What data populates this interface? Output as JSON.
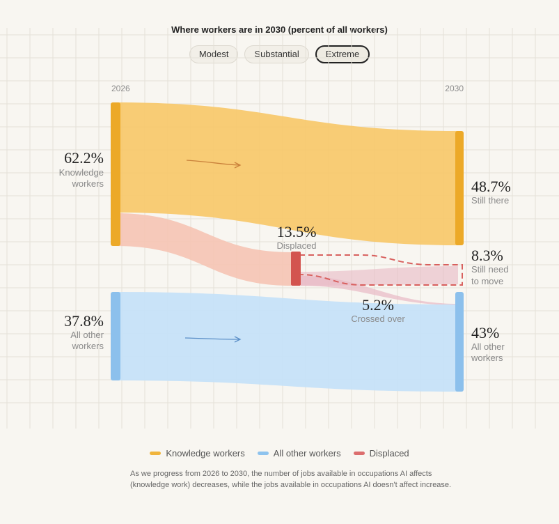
{
  "header": {
    "title": "Where workers are in 2030 (percent of all workers)"
  },
  "scenarios": {
    "options": [
      "Modest",
      "Substantial",
      "Extreme"
    ],
    "selected": "Extreme"
  },
  "chart_data": {
    "type": "sankey",
    "title": "Where workers are in 2030 (percent of all workers)",
    "x_labels": [
      "2026",
      "2030"
    ],
    "nodes": [
      {
        "id": "knowledge_2026",
        "value": "62.2%",
        "label": "Knowledge workers"
      },
      {
        "id": "other_2026",
        "value": "37.8%",
        "label": "All other workers"
      },
      {
        "id": "displaced",
        "value": "13.5%",
        "label": "Displaced"
      },
      {
        "id": "still_there",
        "value": "48.7%",
        "label": "Still there"
      },
      {
        "id": "need_move",
        "value": "8.3%",
        "label": "Still need to move"
      },
      {
        "id": "crossed",
        "value": "5.2%",
        "label": "Crossed over"
      },
      {
        "id": "other_2030",
        "value": "43%",
        "label": "All other workers"
      }
    ],
    "flows": [
      {
        "from": "knowledge_2026",
        "to": "still_there",
        "value": 48.7
      },
      {
        "from": "knowledge_2026",
        "to": "displaced",
        "value": 13.5
      },
      {
        "from": "displaced",
        "to": "need_move",
        "value": 8.3
      },
      {
        "from": "displaced",
        "to": "other_2030",
        "value": 5.2
      },
      {
        "from": "other_2026",
        "to": "other_2030",
        "value": 37.8
      }
    ],
    "legend": [
      "Knowledge workers",
      "All other workers",
      "Displaced"
    ],
    "legend_position": "bottom-center",
    "grid": true
  },
  "labels": {
    "knowledge_2026": {
      "value": "62.2%",
      "line1": "Knowledge",
      "line2": "workers"
    },
    "other_2026": {
      "value": "37.8%",
      "line1": "All other",
      "line2": "workers"
    },
    "displaced": {
      "value": "13.5%",
      "line1": "Displaced"
    },
    "still_there": {
      "value": "48.7%",
      "line1": "Still there"
    },
    "need_move": {
      "value": "8.3%",
      "line1": "Still need",
      "line2": "to move"
    },
    "crossed": {
      "value": "5.2%",
      "line1": "Crossed over"
    },
    "other_2030": {
      "value": "43%",
      "line1": "All other",
      "line2": "workers"
    }
  },
  "legend": [
    {
      "label": "Knowledge workers",
      "color": "#f0b43c"
    },
    {
      "label": "All other workers",
      "color": "#8ec3ee"
    },
    {
      "label": "Displaced",
      "color": "#dc6e6e"
    }
  ],
  "colors": {
    "knowledge": "#f7c86a",
    "knowledge_bar": "#eca928",
    "other": "#c4e1f8",
    "other_bar": "#8cc0ec",
    "displaced_flow": "#f5c4b4",
    "displaced_bar": "#d3544f",
    "need_move_flow": "#e8b9c4",
    "dash": "#d8605e"
  },
  "footnote": "As we progress from 2026 to 2030, the number of jobs available in occupations AI affects (knowledge work) decreases, while the jobs available in occupations AI doesn't affect increase."
}
